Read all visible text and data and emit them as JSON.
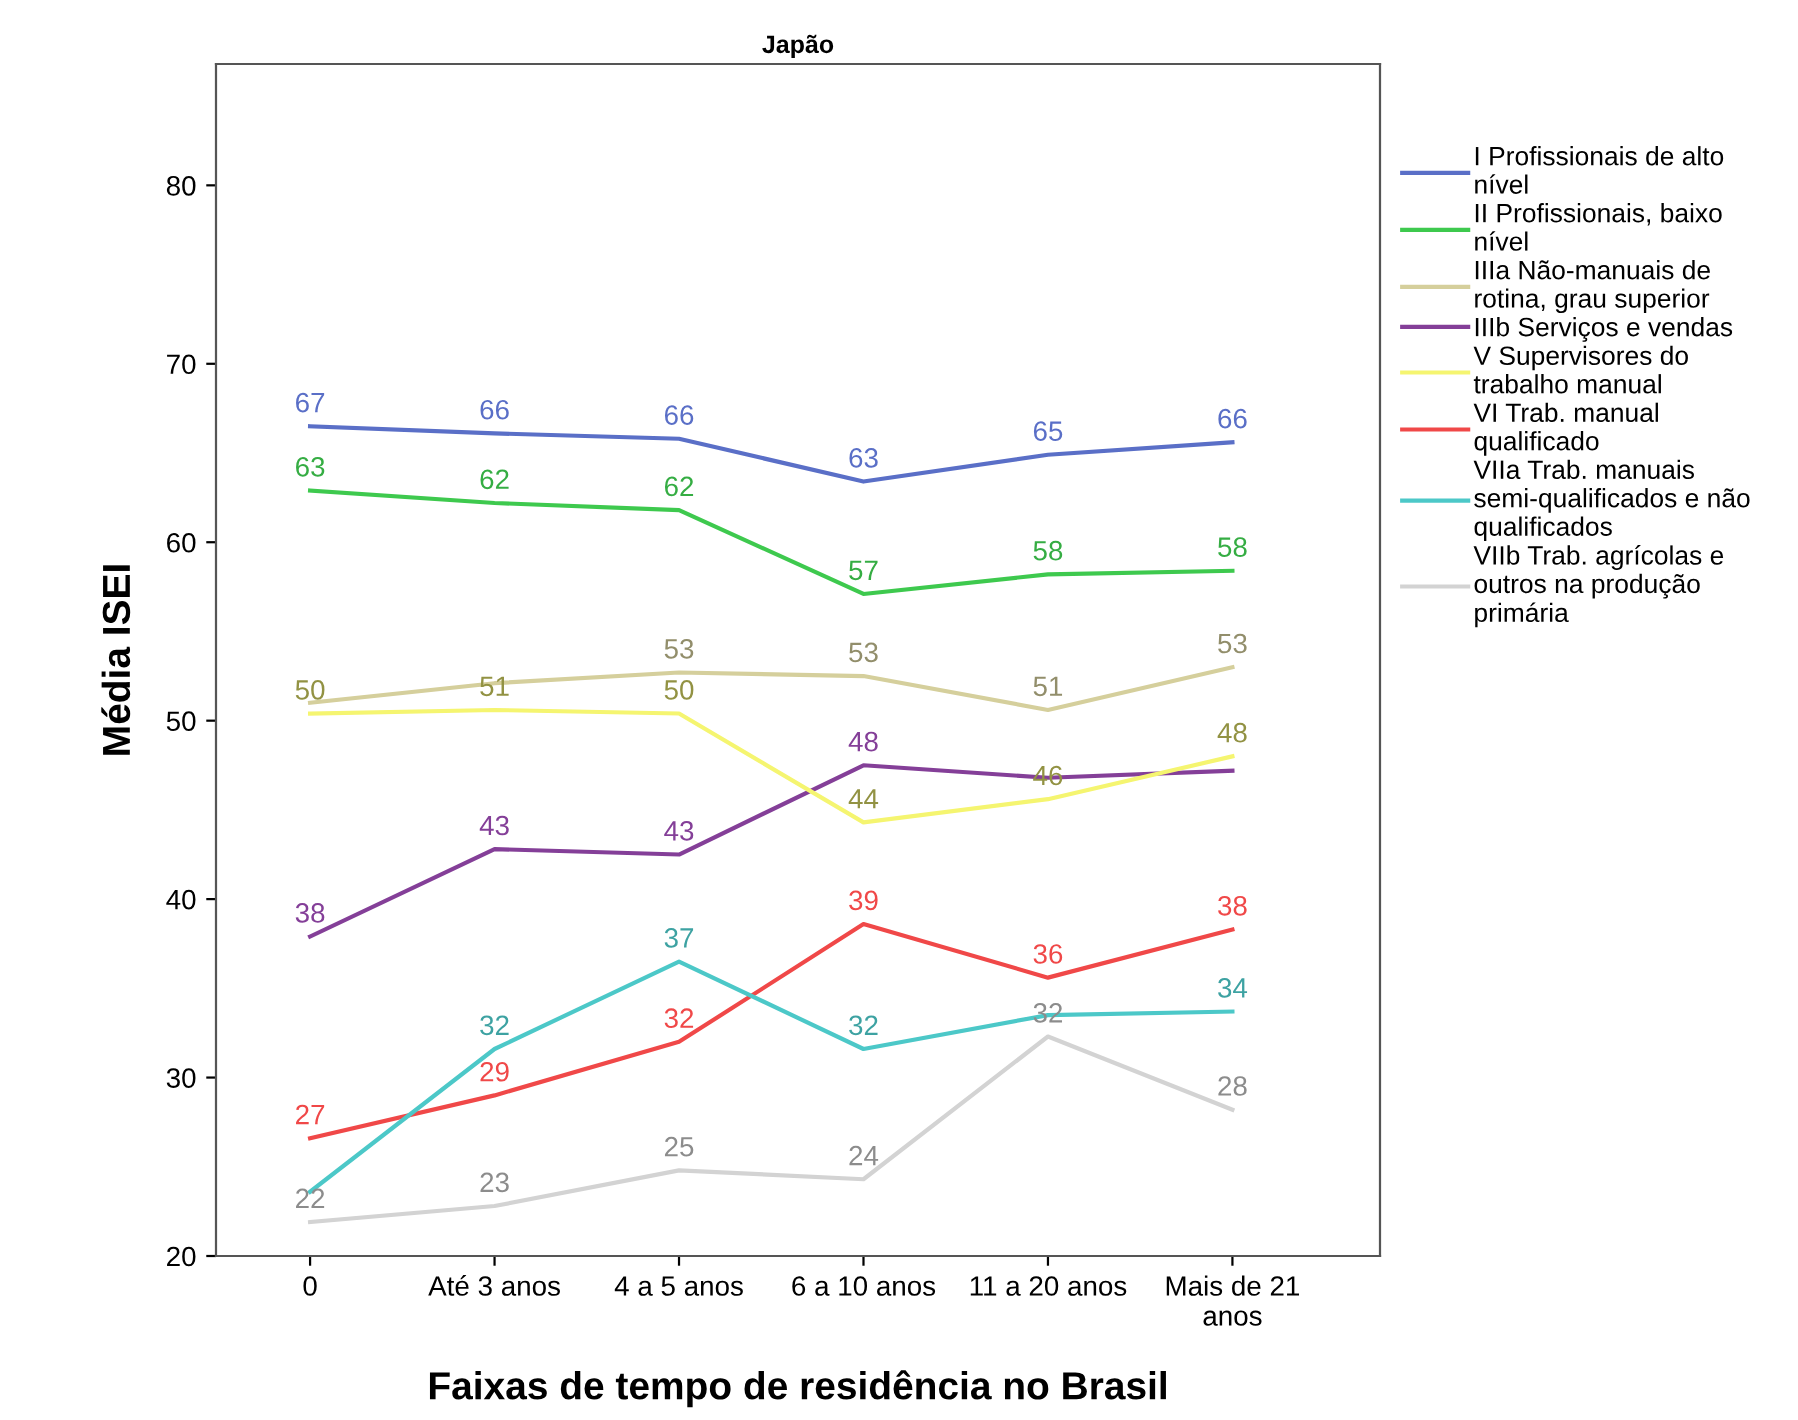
{
  "chart_data": {
    "type": "line",
    "title": "Japão",
    "xlabel": "Faixas de tempo de residência no Brasil",
    "ylabel": "Média ISEI",
    "categories": [
      "0",
      "Até 3 anos",
      "4 a 5 anos",
      "6 a 10 anos",
      "11 a 20 anos",
      "Mais de 21\nanos"
    ],
    "ylim": [
      20,
      86.8
    ],
    "yticks": [
      20,
      30,
      40,
      50,
      60,
      70,
      80
    ],
    "grid": false,
    "legend": "right",
    "line_style": "solid",
    "series": [
      {
        "name": "I Profissionais de alto\nnível",
        "color": "#5a6fc7",
        "values": [
          66.5,
          66.1,
          65.8,
          63.4,
          64.9,
          65.6
        ],
        "value_labels": [
          "67",
          "66",
          "66",
          "63",
          "65",
          "66"
        ]
      },
      {
        "name": "II Profissionais, baixo\nnível",
        "color": "#3ec94e",
        "values": [
          62.9,
          62.2,
          61.8,
          57.1,
          58.2,
          58.4
        ],
        "value_labels": [
          "63",
          "62",
          "62",
          "57",
          "58",
          "58"
        ]
      },
      {
        "name": "IIIa Não-manuais de\nrotina, grau superior",
        "color": "#d5cf9c",
        "values": [
          51.0,
          52.1,
          52.7,
          52.5,
          50.6,
          53.0
        ],
        "value_labels": [
          null,
          null,
          "53",
          "53",
          "51",
          "53"
        ]
      },
      {
        "name": "IIIb Serviços e vendas",
        "color": "#843f98",
        "values": [
          37.9,
          42.8,
          42.5,
          47.5,
          46.8,
          47.2
        ],
        "value_labels": [
          "38",
          "43",
          "43",
          "48",
          null,
          null
        ]
      },
      {
        "name": "V Supervisores do\ntrabalho manual",
        "color": "#f5f570",
        "values": [
          50.4,
          50.6,
          50.4,
          44.3,
          45.6,
          48.0
        ],
        "value_labels": [
          "50",
          "51",
          "50",
          "44",
          "46",
          "48"
        ]
      },
      {
        "name": "VI Trab. manual\nqualificado",
        "color": "#f04848",
        "values": [
          26.6,
          29.0,
          32.0,
          38.6,
          35.6,
          38.3
        ],
        "value_labels": [
          "27",
          "29",
          "32",
          "39",
          "36",
          "38"
        ]
      },
      {
        "name": "VIIa Trab. manuais\nsemi-qualificados e não\nqualificados",
        "color": "#4cc8c8",
        "values": [
          23.6,
          31.6,
          36.5,
          31.6,
          33.5,
          33.7
        ],
        "value_labels": [
          null,
          "32",
          "37",
          "32",
          null,
          "34"
        ]
      },
      {
        "name": "VIIb Trab. agrícolas e\noutros na produção\nprimária",
        "color": "#d3d3d3",
        "values": [
          21.9,
          22.8,
          24.8,
          24.3,
          32.3,
          28.2
        ],
        "value_labels": [
          "22",
          "23",
          "25",
          "24",
          "32",
          "28"
        ]
      }
    ]
  }
}
